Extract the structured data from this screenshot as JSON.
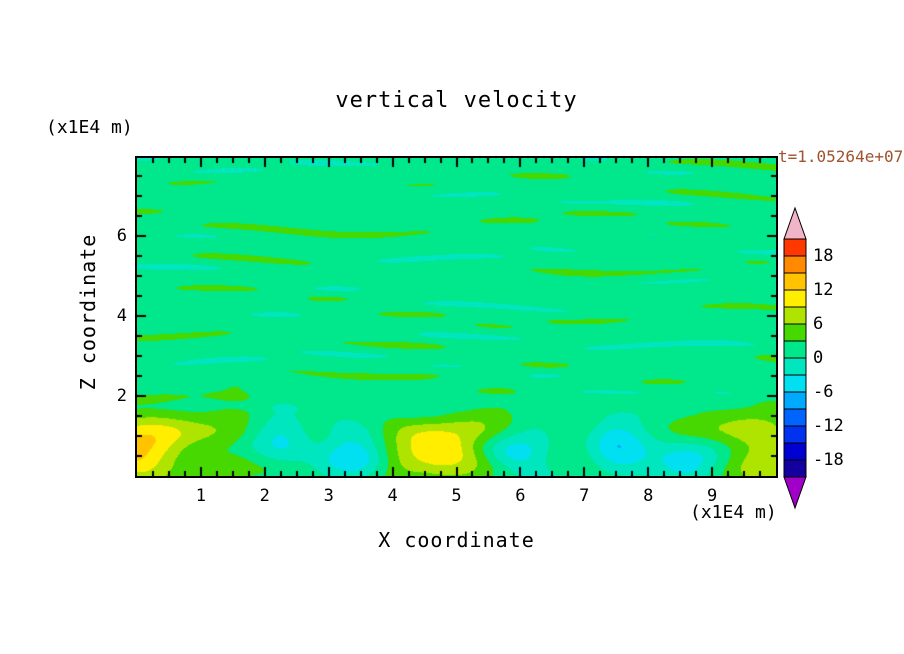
{
  "title": "vertical velocity",
  "annotation": {
    "text": "t=1.05264e+07",
    "color": "#A0522D"
  },
  "axes": {
    "x_label": "X coordinate",
    "x_unit": "(x1E4 m)",
    "y_label": "Z coordinate",
    "y_unit": "(x1E4 m)",
    "x_tick_labels": [
      "1",
      "2",
      "3",
      "4",
      "5",
      "6",
      "7",
      "8",
      "9"
    ],
    "y_tick_labels": [
      "2",
      "4",
      "6"
    ],
    "x_range": [
      0,
      10
    ],
    "y_range": [
      0,
      7.95
    ]
  },
  "colorbar": {
    "tick_labels": [
      "18",
      "12",
      "6",
      "0",
      "-6",
      "-12",
      "-18"
    ],
    "colors_bottom_to_top": [
      "#14009E",
      "#0000D2",
      "#0032F0",
      "#0064FF",
      "#00AAFF",
      "#00E0F0",
      "#00E6BE",
      "#00E78C",
      "#46D800",
      "#AEE400",
      "#FFEE00",
      "#FFC300",
      "#FF8A00",
      "#FF3800"
    ],
    "under_arrow_color": "#A000C8",
    "over_arrow_color": "#F2B4C8"
  },
  "chart_data": {
    "type": "heatmap",
    "title": "vertical velocity",
    "xlabel": "X coordinate",
    "ylabel": "Z coordinate",
    "x_unit": "(x1E4 m)",
    "y_unit": "(x1E4 m)",
    "x_range": [
      0,
      10
    ],
    "z_range": [
      0,
      7.95
    ],
    "x_ticks": [
      1,
      2,
      3,
      4,
      5,
      6,
      7,
      8,
      9
    ],
    "z_ticks": [
      2,
      4,
      6
    ],
    "time_annotation": "t=1.05264e+07",
    "legend_position": "right",
    "contour_levels": [
      -21,
      -18,
      -15,
      -12,
      -9,
      -6,
      -3,
      0,
      3,
      6,
      9,
      12,
      15,
      18,
      21
    ],
    "colorbar_tick_values": [
      18,
      12,
      6,
      0,
      -6,
      -12,
      -18
    ],
    "background_value_band": [
      0,
      3
    ],
    "streak_value_band": [
      3,
      6
    ],
    "field_description": "Filled contour field of vertical velocity. Upper region (z > ~2) shows thin elongated horizontal streaks of weakly positive velocity (band 3-6) on a near-zero background (band 0-3). Lower boundary-layer band (z < ~2) is turbulent with strong localized updrafts (yellow, 6-12) and downdrafts (cyan, -3 to -9).",
    "features": [
      {
        "x": 0.15,
        "z": 0.7,
        "sx": 0.55,
        "sz": 0.62,
        "amp": 9.0,
        "note": "strong updraft blob, bottom-left corner (yellow)"
      },
      {
        "x": 5.15,
        "z": 0.92,
        "sx": 0.62,
        "sz": 0.48,
        "amp": 8.0,
        "note": "updraft blob near x=5 (yellow)"
      },
      {
        "x": 4.55,
        "z": 0.42,
        "sx": 0.45,
        "sz": 0.34,
        "amp": 5.5,
        "note": "updraft extension (yellow-green)"
      },
      {
        "x": 9.9,
        "z": 0.75,
        "sx": 0.58,
        "sz": 0.6,
        "amp": 9.0,
        "note": "strong updraft blob, bottom-right corner (yellow)"
      },
      {
        "x": 5.95,
        "z": 0.7,
        "sx": 0.42,
        "sz": 0.46,
        "amp": -6.5,
        "note": "downdraft blob (cyan)"
      },
      {
        "x": 7.5,
        "z": 0.85,
        "sx": 0.5,
        "sz": 0.46,
        "amp": -6.0,
        "note": "downdraft blob (cyan)"
      },
      {
        "x": 3.35,
        "z": 0.38,
        "sx": 0.42,
        "sz": 0.3,
        "amp": -5.0,
        "note": "small downdraft (cyan)"
      },
      {
        "x": 2.2,
        "z": 0.9,
        "sx": 0.36,
        "sz": 0.4,
        "amp": -4.0,
        "note": "weak downdraft (pale cyan)"
      },
      {
        "x": 8.55,
        "z": 0.35,
        "sx": 0.4,
        "sz": 0.3,
        "amp": -4.0,
        "note": "weak downdraft (pale cyan)"
      },
      {
        "x": 1.55,
        "z": 0.55,
        "sx": 0.45,
        "sz": 0.38,
        "amp": 4.5,
        "note": "weak updraft (green)"
      }
    ]
  }
}
